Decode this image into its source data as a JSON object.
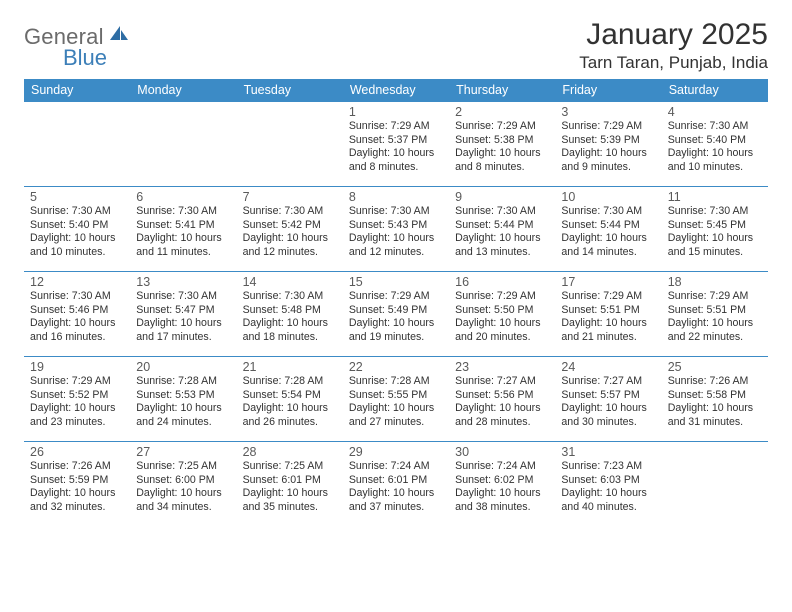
{
  "brand": {
    "text1": "General",
    "text2": "Blue"
  },
  "title": "January 2025",
  "location": "Tarn Taran, Punjab, India",
  "colors": {
    "header_bg": "#3c8bc6",
    "header_text": "#ffffff",
    "border": "#3c8bc6",
    "body_text": "#323232",
    "muted": "#5a5a5a",
    "brand_gray": "#6b6b6b",
    "brand_blue": "#3c7fb8",
    "page_bg": "#ffffff"
  },
  "day_names": [
    "Sunday",
    "Monday",
    "Tuesday",
    "Wednesday",
    "Thursday",
    "Friday",
    "Saturday"
  ],
  "weeks": [
    [
      null,
      null,
      null,
      {
        "n": "1",
        "sr": "7:29 AM",
        "ss": "5:37 PM",
        "dl": "10 hours and 8 minutes."
      },
      {
        "n": "2",
        "sr": "7:29 AM",
        "ss": "5:38 PM",
        "dl": "10 hours and 8 minutes."
      },
      {
        "n": "3",
        "sr": "7:29 AM",
        "ss": "5:39 PM",
        "dl": "10 hours and 9 minutes."
      },
      {
        "n": "4",
        "sr": "7:30 AM",
        "ss": "5:40 PM",
        "dl": "10 hours and 10 minutes."
      }
    ],
    [
      {
        "n": "5",
        "sr": "7:30 AM",
        "ss": "5:40 PM",
        "dl": "10 hours and 10 minutes."
      },
      {
        "n": "6",
        "sr": "7:30 AM",
        "ss": "5:41 PM",
        "dl": "10 hours and 11 minutes."
      },
      {
        "n": "7",
        "sr": "7:30 AM",
        "ss": "5:42 PM",
        "dl": "10 hours and 12 minutes."
      },
      {
        "n": "8",
        "sr": "7:30 AM",
        "ss": "5:43 PM",
        "dl": "10 hours and 12 minutes."
      },
      {
        "n": "9",
        "sr": "7:30 AM",
        "ss": "5:44 PM",
        "dl": "10 hours and 13 minutes."
      },
      {
        "n": "10",
        "sr": "7:30 AM",
        "ss": "5:44 PM",
        "dl": "10 hours and 14 minutes."
      },
      {
        "n": "11",
        "sr": "7:30 AM",
        "ss": "5:45 PM",
        "dl": "10 hours and 15 minutes."
      }
    ],
    [
      {
        "n": "12",
        "sr": "7:30 AM",
        "ss": "5:46 PM",
        "dl": "10 hours and 16 minutes."
      },
      {
        "n": "13",
        "sr": "7:30 AM",
        "ss": "5:47 PM",
        "dl": "10 hours and 17 minutes."
      },
      {
        "n": "14",
        "sr": "7:30 AM",
        "ss": "5:48 PM",
        "dl": "10 hours and 18 minutes."
      },
      {
        "n": "15",
        "sr": "7:29 AM",
        "ss": "5:49 PM",
        "dl": "10 hours and 19 minutes."
      },
      {
        "n": "16",
        "sr": "7:29 AM",
        "ss": "5:50 PM",
        "dl": "10 hours and 20 minutes."
      },
      {
        "n": "17",
        "sr": "7:29 AM",
        "ss": "5:51 PM",
        "dl": "10 hours and 21 minutes."
      },
      {
        "n": "18",
        "sr": "7:29 AM",
        "ss": "5:51 PM",
        "dl": "10 hours and 22 minutes."
      }
    ],
    [
      {
        "n": "19",
        "sr": "7:29 AM",
        "ss": "5:52 PM",
        "dl": "10 hours and 23 minutes."
      },
      {
        "n": "20",
        "sr": "7:28 AM",
        "ss": "5:53 PM",
        "dl": "10 hours and 24 minutes."
      },
      {
        "n": "21",
        "sr": "7:28 AM",
        "ss": "5:54 PM",
        "dl": "10 hours and 26 minutes."
      },
      {
        "n": "22",
        "sr": "7:28 AM",
        "ss": "5:55 PM",
        "dl": "10 hours and 27 minutes."
      },
      {
        "n": "23",
        "sr": "7:27 AM",
        "ss": "5:56 PM",
        "dl": "10 hours and 28 minutes."
      },
      {
        "n": "24",
        "sr": "7:27 AM",
        "ss": "5:57 PM",
        "dl": "10 hours and 30 minutes."
      },
      {
        "n": "25",
        "sr": "7:26 AM",
        "ss": "5:58 PM",
        "dl": "10 hours and 31 minutes."
      }
    ],
    [
      {
        "n": "26",
        "sr": "7:26 AM",
        "ss": "5:59 PM",
        "dl": "10 hours and 32 minutes."
      },
      {
        "n": "27",
        "sr": "7:25 AM",
        "ss": "6:00 PM",
        "dl": "10 hours and 34 minutes."
      },
      {
        "n": "28",
        "sr": "7:25 AM",
        "ss": "6:01 PM",
        "dl": "10 hours and 35 minutes."
      },
      {
        "n": "29",
        "sr": "7:24 AM",
        "ss": "6:01 PM",
        "dl": "10 hours and 37 minutes."
      },
      {
        "n": "30",
        "sr": "7:24 AM",
        "ss": "6:02 PM",
        "dl": "10 hours and 38 minutes."
      },
      {
        "n": "31",
        "sr": "7:23 AM",
        "ss": "6:03 PM",
        "dl": "10 hours and 40 minutes."
      },
      null
    ]
  ],
  "labels": {
    "sunrise": "Sunrise:",
    "sunset": "Sunset:",
    "daylight": "Daylight:"
  }
}
